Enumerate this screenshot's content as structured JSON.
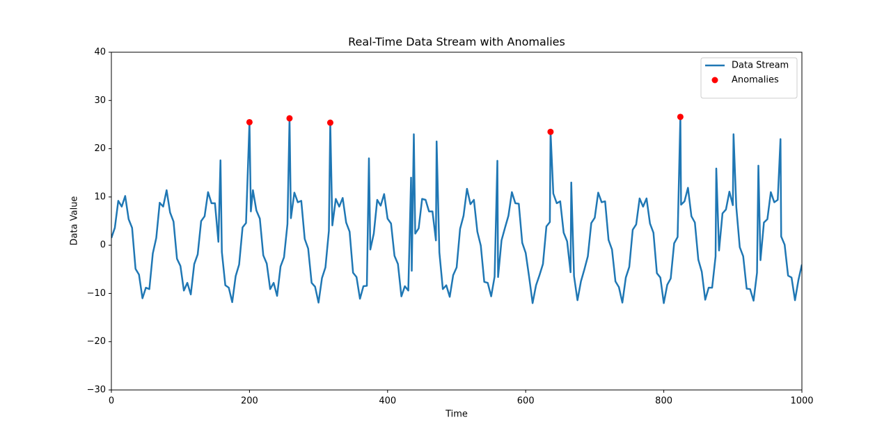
{
  "chart_data": {
    "type": "line",
    "title": "Real-Time Data Stream with Anomalies",
    "xlabel": "Time",
    "ylabel": "Data Value",
    "xlim": [
      0,
      1000
    ],
    "xticks": [
      0,
      200,
      400,
      600,
      800,
      1000
    ],
    "ylim": [
      -30,
      40
    ],
    "yticks": [
      {
        "value": -30,
        "label": "−30"
      },
      {
        "value": -20,
        "label": "−20"
      },
      {
        "value": -10,
        "label": "−10"
      },
      0,
      10,
      20,
      30,
      40
    ],
    "grid": false,
    "legend": "upper right",
    "series": [
      {
        "name": "Data Stream",
        "type": "line",
        "color": "#1f77b4",
        "x": [
          0,
          5,
          10,
          15,
          20,
          25,
          30,
          35,
          40,
          45,
          50,
          55,
          60,
          65,
          70,
          75,
          80,
          85,
          90,
          95,
          100,
          105,
          110,
          115,
          120,
          125,
          130,
          135,
          140,
          145,
          150,
          155,
          158,
          160,
          165,
          170,
          175,
          180,
          185,
          190,
          195,
          200,
          202,
          205,
          210,
          215,
          220,
          225,
          230,
          235,
          240,
          245,
          250,
          255,
          258,
          260,
          265,
          270,
          275,
          280,
          285,
          290,
          295,
          300,
          305,
          310,
          315,
          317,
          320,
          325,
          330,
          335,
          340,
          345,
          350,
          355,
          360,
          365,
          370,
          373,
          375,
          380,
          385,
          390,
          395,
          400,
          405,
          410,
          415,
          420,
          425,
          430,
          434,
          435,
          438,
          440,
          445,
          450,
          455,
          460,
          465,
          470,
          471,
          475,
          480,
          485,
          490,
          495,
          500,
          505,
          510,
          515,
          520,
          525,
          530,
          535,
          540,
          545,
          550,
          555,
          559,
          560,
          565,
          570,
          575,
          580,
          585,
          590,
          595,
          600,
          605,
          610,
          615,
          620,
          625,
          630,
          635,
          636,
          640,
          645,
          650,
          655,
          660,
          665,
          666,
          670,
          675,
          680,
          685,
          690,
          695,
          700,
          705,
          710,
          715,
          720,
          725,
          730,
          735,
          740,
          745,
          750,
          755,
          760,
          765,
          770,
          775,
          780,
          785,
          790,
          795,
          800,
          805,
          810,
          815,
          820,
          824,
          825,
          830,
          835,
          840,
          845,
          850,
          855,
          860,
          865,
          870,
          875,
          876,
          880,
          885,
          890,
          895,
          900,
          901,
          905,
          910,
          915,
          920,
          925,
          930,
          935,
          937,
          940,
          945,
          950,
          955,
          960,
          965,
          969,
          970,
          975,
          980,
          985,
          990,
          995,
          1000
        ],
        "values": [
          1.5,
          3.6,
          9.2,
          8.0,
          10.2,
          5.4,
          3.6,
          -4.9,
          -6.1,
          -11.0,
          -8.8,
          -9.1,
          -1.7,
          1.5,
          8.8,
          8.0,
          11.4,
          6.8,
          4.9,
          -2.8,
          -4.3,
          -9.4,
          -7.8,
          -10.2,
          -3.9,
          -1.9,
          5.0,
          6.0,
          11.0,
          8.7,
          8.7,
          0.7,
          17.6,
          -1.4,
          -8.3,
          -8.8,
          -11.8,
          -6.4,
          -4.0,
          3.7,
          4.6,
          25.5,
          7.0,
          11.4,
          7.2,
          5.5,
          -2.1,
          -3.8,
          -9.1,
          -7.8,
          -10.5,
          -4.4,
          -2.5,
          4.4,
          26.3,
          5.6,
          10.9,
          8.9,
          9.2,
          1.3,
          -0.7,
          -7.8,
          -8.6,
          -11.9,
          -6.8,
          -4.6,
          3.0,
          25.4,
          4.1,
          9.6,
          8.0,
          9.8,
          4.7,
          2.8,
          -5.7,
          -6.6,
          -11.1,
          -8.5,
          -8.4,
          18.0,
          -0.9,
          2.4,
          9.4,
          8.2,
          10.6,
          5.5,
          4.5,
          -2.2,
          -3.9,
          -10.6,
          -8.5,
          -9.4,
          14.0,
          -5.3,
          23.0,
          2.4,
          3.5,
          9.6,
          9.4,
          7.0,
          7.0,
          1.0,
          21.5,
          -1.5,
          -9.1,
          -8.3,
          -10.7,
          -6.2,
          -4.6,
          3.4,
          6.1,
          11.7,
          8.5,
          9.4,
          2.8,
          -0.1,
          -7.6,
          -7.8,
          -10.6,
          -6.5,
          17.5,
          -6.6,
          1.0,
          3.6,
          6.1,
          11.0,
          8.7,
          8.6,
          0.5,
          -1.6,
          -6.6,
          -12.0,
          -8.3,
          -6.2,
          -3.9,
          3.9,
          4.8,
          23.5,
          10.7,
          8.7,
          9.1,
          2.6,
          0.8,
          -5.6,
          13.0,
          -6.4,
          -11.4,
          -7.5,
          -5.0,
          -2.3,
          4.6,
          5.7,
          10.9,
          8.9,
          9.1,
          1.1,
          -0.9,
          -7.5,
          -8.7,
          -11.9,
          -6.7,
          -4.5,
          3.2,
          4.3,
          9.7,
          8.0,
          9.7,
          4.5,
          2.6,
          -5.8,
          -6.7,
          -12.0,
          -8.2,
          -6.9,
          0.4,
          1.7,
          26.6,
          8.4,
          9.1,
          11.9,
          6.0,
          4.7,
          -3.0,
          -5.5,
          -11.3,
          -8.8,
          -8.8,
          -2.3,
          15.9,
          -1.1,
          6.6,
          7.4,
          11.1,
          8.3,
          23.0,
          7.9,
          -0.4,
          -2.3,
          -9.0,
          -9.1,
          -11.5,
          -5.7,
          16.5,
          -3.1,
          4.7,
          5.4,
          11.0,
          8.9,
          9.4,
          22.0,
          1.8,
          0.1,
          -6.3,
          -6.7,
          -11.4,
          -7.2,
          -4.0
        ]
      },
      {
        "name": "Anomalies",
        "type": "scatter",
        "color": "#ff0000",
        "x": [
          200,
          258,
          317,
          636,
          824
        ],
        "values": [
          25.5,
          26.3,
          25.4,
          23.5,
          26.6
        ]
      }
    ]
  }
}
